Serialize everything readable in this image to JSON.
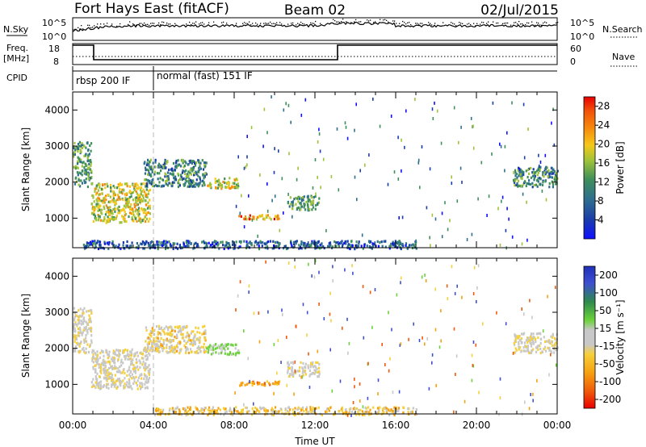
{
  "header": {
    "station": "Fort Hays East (fitACF)",
    "beam": "Beam 02",
    "date": "02/Jul/2015"
  },
  "summary_panel": {
    "nsky_label": "N.Sky",
    "nsky_ticks": [
      "10^5",
      "10^0"
    ],
    "nsearch_label": "N.Search",
    "nsearch_ticks": [
      "10^5",
      "10^0"
    ],
    "freq_label_1": "Freq.",
    "freq_label_2": "[MHz]",
    "freq_ticks": [
      "18",
      "8"
    ],
    "nave_label": "Nave",
    "nave_ticks": [
      "60",
      "0"
    ],
    "cpid_label": "CPID",
    "cpid_segments": [
      {
        "label": "rbsp 200 IF",
        "start_hour": 0,
        "end_hour": 4
      },
      {
        "label": "normal (fast) 151 IF",
        "start_hour": 4,
        "end_hour": 24
      }
    ]
  },
  "chart_data": [
    {
      "type": "heatmap",
      "title": "",
      "ylabel": "Slant Range [km]",
      "xlabel": "",
      "ylim": [
        180,
        4500
      ],
      "xlim_hours": [
        0,
        24
      ],
      "yticks": [
        1000,
        2000,
        3000,
        4000
      ],
      "colorbar": {
        "label": "Power [dB]",
        "ticks": [
          "4",
          "8",
          "12",
          "16",
          "20",
          "24",
          "28"
        ],
        "range": [
          0,
          30
        ]
      },
      "echo_regions": [
        {
          "t0": 0.0,
          "t1": 0.9,
          "r0": 1900,
          "r1": 3150,
          "level": 14
        },
        {
          "t0": 0.9,
          "t1": 3.8,
          "r0": 900,
          "r1": 2000,
          "level": 20
        },
        {
          "t0": 3.5,
          "t1": 6.6,
          "r0": 1900,
          "r1": 2650,
          "level": 12
        },
        {
          "t0": 6.6,
          "t1": 8.2,
          "r0": 1850,
          "r1": 2150,
          "level": 20
        },
        {
          "t0": 8.2,
          "t1": 10.2,
          "r0": 1000,
          "r1": 1120,
          "level": 24
        },
        {
          "t0": 10.6,
          "t1": 12.2,
          "r0": 1250,
          "r1": 1650,
          "level": 14
        },
        {
          "t0": 21.8,
          "t1": 24.0,
          "r0": 1900,
          "r1": 2450,
          "level": 12
        },
        {
          "t0": 0.5,
          "t1": 17.0,
          "r0": 180,
          "r1": 400,
          "level": 8
        }
      ]
    },
    {
      "type": "heatmap",
      "title": "",
      "ylabel": "Slant Range [km]",
      "xlabel": "Time UT",
      "ylim": [
        180,
        4500
      ],
      "xlim_hours": [
        0,
        24
      ],
      "xticks": [
        "00:00",
        "04:00",
        "08:00",
        "12:00",
        "16:00",
        "20:00",
        "00:00"
      ],
      "yticks": [
        1000,
        2000,
        3000,
        4000
      ],
      "colorbar": {
        "label": "Velocity [m s⁻¹]",
        "ticks": [
          "200",
          "100",
          "50",
          "15",
          "-15",
          "-50",
          "-100",
          "-200"
        ],
        "range": [
          -250,
          250
        ]
      },
      "echo_regions": [
        {
          "t0": 0.0,
          "t1": 0.9,
          "r0": 1900,
          "r1": 3150,
          "velocity": 0
        },
        {
          "t0": 0.9,
          "t1": 3.8,
          "r0": 900,
          "r1": 2000,
          "velocity": 0
        },
        {
          "t0": 3.5,
          "t1": 6.6,
          "r0": 1900,
          "r1": 2650,
          "velocity": -20
        },
        {
          "t0": 6.6,
          "t1": 8.2,
          "r0": 1850,
          "r1": 2150,
          "velocity": 40
        },
        {
          "t0": 8.2,
          "t1": 10.2,
          "r0": 1000,
          "r1": 1120,
          "velocity": -60
        },
        {
          "t0": 10.6,
          "t1": 12.2,
          "r0": 1250,
          "r1": 1650,
          "velocity": 0
        },
        {
          "t0": 21.8,
          "t1": 24.0,
          "r0": 1900,
          "r1": 2450,
          "velocity": 0
        },
        {
          "t0": 4.0,
          "t1": 17.0,
          "r0": 180,
          "r1": 400,
          "velocity": -30
        }
      ]
    }
  ]
}
